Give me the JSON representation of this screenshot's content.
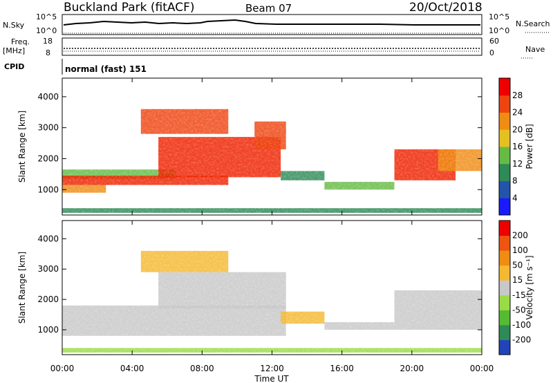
{
  "header": {
    "title": "Buckland Park (fitACF)",
    "beam": "Beam 07",
    "date": "20/Oct/2018"
  },
  "strips": {
    "nsky_label": "N.Sky",
    "nsky_ticks": [
      "10^5",
      "10^0"
    ],
    "nsearch_label": "N.Search",
    "nsearch_ticks": [
      "10^5",
      "10^0"
    ],
    "freq_label": "Freq.",
    "freq_unit": "[MHz]",
    "freq_ticks": [
      "18",
      "8"
    ],
    "nave_label": "Nave",
    "nave_ticks": [
      "60",
      "0"
    ],
    "cpid_label": "CPID",
    "cpid_value": "normal (fast) 151"
  },
  "chart_data": [
    {
      "type": "heatmap",
      "name": "power",
      "ylabel": "Slant Range [km]",
      "xlabel": "Time UT",
      "xlim": [
        "00:00",
        "24:00"
      ],
      "ylim": [
        180,
        4600
      ],
      "x_ticks": [
        "00:00",
        "04:00",
        "08:00",
        "12:00",
        "16:00",
        "20:00",
        "00:00"
      ],
      "y_ticks": [
        1000,
        2000,
        3000,
        4000
      ],
      "colorbar": {
        "label": "Power [dB]",
        "ticks": [
          "4",
          "8",
          "12",
          "16",
          "20",
          "24",
          "28"
        ],
        "colors": [
          "#1a1aff",
          "#2255aa",
          "#2e8b57",
          "#66bb44",
          "#e6c020",
          "#f08c14",
          "#ee4411",
          "#ee0000"
        ]
      },
      "bands": [
        {
          "x": [
            0,
            6.5
          ],
          "y": [
            1350,
            1650
          ],
          "color": "#66bb44"
        },
        {
          "x": [
            0,
            9.5
          ],
          "y": [
            1150,
            1450
          ],
          "color": "#ee2200"
        },
        {
          "x": [
            0,
            2.5
          ],
          "y": [
            900,
            1150
          ],
          "color": "#f08c14"
        },
        {
          "x": [
            5.5,
            12.5
          ],
          "y": [
            1400,
            2700
          ],
          "color": "#ee2200"
        },
        {
          "x": [
            11,
            12.8
          ],
          "y": [
            2300,
            3200
          ],
          "color": "#ee4411"
        },
        {
          "x": [
            4.5,
            9.5
          ],
          "y": [
            2800,
            3600
          ],
          "color": "#ee4411"
        },
        {
          "x": [
            12.5,
            15
          ],
          "y": [
            1300,
            1600
          ],
          "color": "#2e8b57"
        },
        {
          "x": [
            15,
            19
          ],
          "y": [
            1000,
            1250
          ],
          "color": "#66bb44"
        },
        {
          "x": [
            19,
            22.5
          ],
          "y": [
            1300,
            2300
          ],
          "color": "#ee2200"
        },
        {
          "x": [
            21.5,
            24
          ],
          "y": [
            1600,
            2300
          ],
          "color": "#f08c14"
        },
        {
          "x": [
            0,
            24
          ],
          "y": [
            250,
            400
          ],
          "color": "#2e8b57"
        }
      ]
    },
    {
      "type": "heatmap",
      "name": "velocity",
      "ylabel": "Slant Range [km]",
      "xlabel": "Time UT",
      "xlim": [
        "00:00",
        "24:00"
      ],
      "ylim": [
        180,
        4600
      ],
      "x_ticks": [
        "00:00",
        "04:00",
        "08:00",
        "12:00",
        "16:00",
        "20:00",
        "00:00"
      ],
      "y_ticks": [
        1000,
        2000,
        3000,
        4000
      ],
      "colorbar": {
        "label": "Velocity [m s⁻¹]",
        "ticks": [
          "200",
          "100",
          "50",
          "15",
          "-15",
          "-50",
          "-100",
          "-200"
        ],
        "colors": [
          "#2244bb",
          "#2e8b57",
          "#55bb33",
          "#99dd44",
          "#c8c8c8",
          "#f5b830",
          "#f08c14",
          "#ee5511",
          "#ee0000"
        ]
      },
      "bands": [
        {
          "x": [
            0,
            12.8
          ],
          "y": [
            800,
            1800
          ],
          "color": "#c8c8c8"
        },
        {
          "x": [
            5.5,
            12.8
          ],
          "y": [
            1700,
            2900
          ],
          "color": "#c8c8c8"
        },
        {
          "x": [
            4.5,
            9.5
          ],
          "y": [
            2900,
            3600
          ],
          "color": "#f5b830"
        },
        {
          "x": [
            12.5,
            15
          ],
          "y": [
            1200,
            1600
          ],
          "color": "#f5b830"
        },
        {
          "x": [
            15,
            19
          ],
          "y": [
            1000,
            1250
          ],
          "color": "#c8c8c8"
        },
        {
          "x": [
            19,
            24
          ],
          "y": [
            1000,
            2300
          ],
          "color": "#c8c8c8"
        },
        {
          "x": [
            0,
            24
          ],
          "y": [
            250,
            400
          ],
          "color": "#99dd44"
        }
      ]
    }
  ]
}
